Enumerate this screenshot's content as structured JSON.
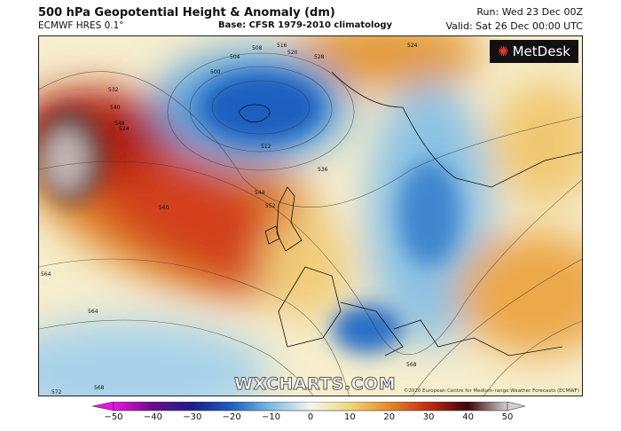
{
  "header": {
    "title": "500 hPa Geopotential Height & Anomaly (dm)",
    "model": "ECMWF HRES 0.1°",
    "base": "Base: CFSR 1979-2010 climatology",
    "run": "Run: Wed 23 Dec 00Z",
    "valid": "Valid: Sat 26 Dec 00:00 UTC"
  },
  "map": {
    "logo": "MetDesk",
    "watermark": "WXCHARTS.COM",
    "copyright": "©2020 European Centre for Medium-range Weather Forecasts (ECMWF)",
    "contour_labels": [
      "500",
      "504",
      "508",
      "512",
      "516",
      "520",
      "524",
      "528",
      "532",
      "536",
      "540",
      "544",
      "548",
      "552",
      "560",
      "564",
      "568",
      "572",
      "524",
      "568",
      "564"
    ]
  },
  "colorbar": {
    "ticks": [
      "−50",
      "−40",
      "−30",
      "−20",
      "−10",
      "0",
      "10",
      "20",
      "30",
      "40",
      "50"
    ],
    "values": [
      -50,
      -40,
      -30,
      -20,
      -10,
      0,
      10,
      20,
      30,
      40,
      50
    ],
    "colors": [
      "#e814e0",
      "#6a0c8c",
      "#1c1c8c",
      "#1f5fc0",
      "#7dbde0",
      "#f4f4f2",
      "#f2d67a",
      "#e48a26",
      "#c22a12",
      "#3c0606",
      "#d4d0d0"
    ]
  }
}
